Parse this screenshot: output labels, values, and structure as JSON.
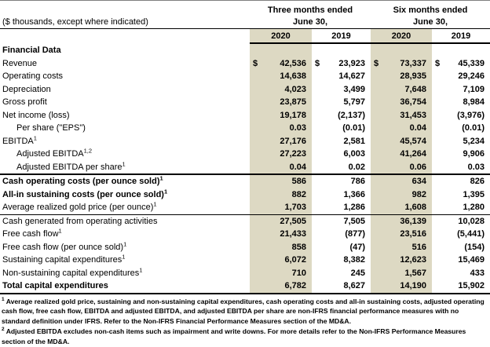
{
  "document": {
    "subtitle": "($ thousands, except where indicated)",
    "column_groups": [
      {
        "title": "Three months ended",
        "date": "June 30,",
        "years": [
          "2020",
          "2019"
        ]
      },
      {
        "title": "Six months ended",
        "date": "June 30,",
        "years": [
          "2020",
          "2019"
        ]
      }
    ],
    "colors": {
      "shaded_column": "#DDD9C3",
      "line": "#000000"
    },
    "rows": [
      {
        "label": "Financial Data",
        "sup": "",
        "indent": false,
        "bold": true,
        "dollar": false,
        "border_top": "",
        "border_bottom": "",
        "values": [
          "",
          "",
          "",
          ""
        ]
      },
      {
        "label": "Revenue",
        "sup": "",
        "indent": false,
        "bold": false,
        "dollar": true,
        "border_top": "",
        "border_bottom": "",
        "values": [
          "42,536",
          "23,923",
          "73,337",
          "45,339"
        ]
      },
      {
        "label": "Operating costs",
        "sup": "",
        "indent": false,
        "bold": false,
        "dollar": false,
        "border_top": "",
        "border_bottom": "",
        "values": [
          "14,638",
          "14,627",
          "28,935",
          "29,246"
        ]
      },
      {
        "label": "Depreciation",
        "sup": "",
        "indent": false,
        "bold": false,
        "dollar": false,
        "border_top": "",
        "border_bottom": "",
        "values": [
          "4,023",
          "3,499",
          "7,648",
          "7,109"
        ]
      },
      {
        "label": "Gross profit",
        "sup": "",
        "indent": false,
        "bold": false,
        "dollar": false,
        "border_top": "",
        "border_bottom": "",
        "values": [
          "23,875",
          "5,797",
          "36,754",
          "8,984"
        ]
      },
      {
        "label": "Net income (loss)",
        "sup": "",
        "indent": false,
        "bold": false,
        "dollar": false,
        "border_top": "",
        "border_bottom": "",
        "values": [
          "19,178",
          "(2,137)",
          "31,453",
          "(3,976)"
        ]
      },
      {
        "label": "Per share (\"EPS\")",
        "sup": "",
        "indent": true,
        "bold": false,
        "dollar": false,
        "border_top": "",
        "border_bottom": "",
        "values": [
          "0.03",
          "(0.01)",
          "0.04",
          "(0.01)"
        ]
      },
      {
        "label": "EBITDA",
        "sup": "1",
        "indent": false,
        "bold": false,
        "dollar": false,
        "border_top": "",
        "border_bottom": "",
        "values": [
          "27,176",
          "2,581",
          "45,574",
          "5,234"
        ]
      },
      {
        "label": "Adjusted EBITDA",
        "sup": "1,2",
        "indent": true,
        "bold": false,
        "dollar": false,
        "border_top": "",
        "border_bottom": "",
        "values": [
          "27,223",
          "6,003",
          "41,264",
          "9,906"
        ]
      },
      {
        "label": "Adjusted EBITDA per share",
        "sup": "1",
        "indent": true,
        "bold": false,
        "dollar": false,
        "border_top": "",
        "border_bottom": "",
        "values": [
          "0.04",
          "0.02",
          "0.06",
          "0.03"
        ]
      },
      {
        "label": "Cash operating costs (per ounce sold)",
        "sup": "1",
        "indent": false,
        "bold": true,
        "dollar": false,
        "border_top": "medium",
        "border_bottom": "",
        "values": [
          "586",
          "786",
          "634",
          "826"
        ]
      },
      {
        "label": "All-in sustaining costs (per ounce sold)",
        "sup": "1",
        "indent": false,
        "bold": true,
        "dollar": false,
        "border_top": "",
        "border_bottom": "",
        "values": [
          "882",
          "1,366",
          "982",
          "1,395"
        ]
      },
      {
        "label": "Average realized gold price (per ounce)",
        "sup": "1",
        "indent": false,
        "bold": false,
        "dollar": false,
        "border_top": "",
        "border_bottom": "thin",
        "values": [
          "1,703",
          "1,286",
          "1,608",
          "1,280"
        ]
      },
      {
        "label": "Cash generated from operating activities",
        "sup": "",
        "indent": false,
        "bold": false,
        "dollar": false,
        "border_top": "",
        "border_bottom": "",
        "values": [
          "27,505",
          "7,505",
          "36,139",
          "10,028"
        ]
      },
      {
        "label": "Free cash flow",
        "sup": "1",
        "indent": false,
        "bold": false,
        "dollar": false,
        "border_top": "",
        "border_bottom": "",
        "values": [
          "21,433",
          "(877)",
          "23,516",
          "(5,441)"
        ]
      },
      {
        "label": "Free cash flow (per ounce sold)",
        "sup": "1",
        "indent": false,
        "bold": false,
        "dollar": false,
        "border_top": "",
        "border_bottom": "",
        "values": [
          "858",
          "(47)",
          "516",
          "(154)"
        ]
      },
      {
        "label": "Sustaining capital expenditures",
        "sup": "1",
        "indent": false,
        "bold": false,
        "dollar": false,
        "border_top": "",
        "border_bottom": "",
        "values": [
          "6,072",
          "8,382",
          "12,623",
          "15,469"
        ]
      },
      {
        "label": "Non-sustaining capital expenditures",
        "sup": "1",
        "indent": false,
        "bold": false,
        "dollar": false,
        "border_top": "",
        "border_bottom": "",
        "values": [
          "710",
          "245",
          "1,567",
          "433"
        ]
      },
      {
        "label": "Total capital expenditures",
        "sup": "",
        "indent": false,
        "bold": true,
        "dollar": false,
        "border_top": "",
        "border_bottom": "",
        "values": [
          "6,782",
          "8,627",
          "14,190",
          "15,902"
        ]
      }
    ],
    "footnotes": [
      {
        "marker": "1",
        "text": "Average realized gold price, sustaining and non-sustaining capital expenditures, cash operating costs and all-in sustaining costs, adjusted operating cash flow, free cash flow, EBITDA and adjusted EBITDA, and adjusted EBITDA per share are non-IFRS financial performance measures with no standard definition under IFRS. Refer to the Non-IFRS Financial Performance Measures section of the MD&A."
      },
      {
        "marker": "2",
        "text": "Adjusted EBITDA excludes non-cash items such as impairment and write downs. For more details refer to the Non-IFRS Performance Measures section of the MD&A."
      }
    ]
  }
}
